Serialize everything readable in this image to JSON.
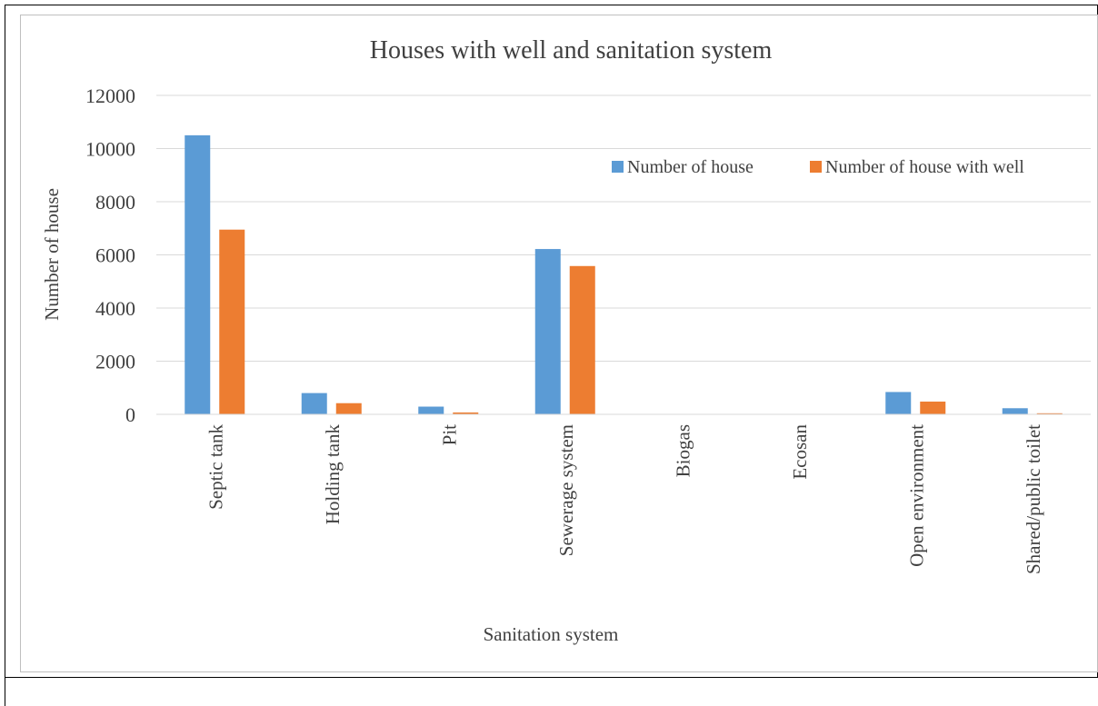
{
  "chart_data": {
    "type": "bar",
    "title": "Houses with well and sanitation system",
    "xlabel": "Sanitation system",
    "ylabel": "Number of house",
    "ylim": [
      0,
      12000
    ],
    "yticks": [
      0,
      2000,
      4000,
      6000,
      8000,
      10000,
      12000
    ],
    "grid": true,
    "legend_position": "top-right",
    "categories": [
      "Septic tank",
      "Holding tank",
      "Pit",
      "Sewerage system",
      "Biogas",
      "Ecosan",
      "Open environment",
      "Shared/public toilet"
    ],
    "series": [
      {
        "name": "Number of house",
        "color": "#5b9bd5",
        "values": [
          10500,
          800,
          290,
          6220,
          0,
          0,
          840,
          230
        ]
      },
      {
        "name": "Number of house with well",
        "color": "#ed7d31",
        "values": [
          6950,
          420,
          70,
          5580,
          0,
          0,
          480,
          40
        ]
      }
    ]
  }
}
